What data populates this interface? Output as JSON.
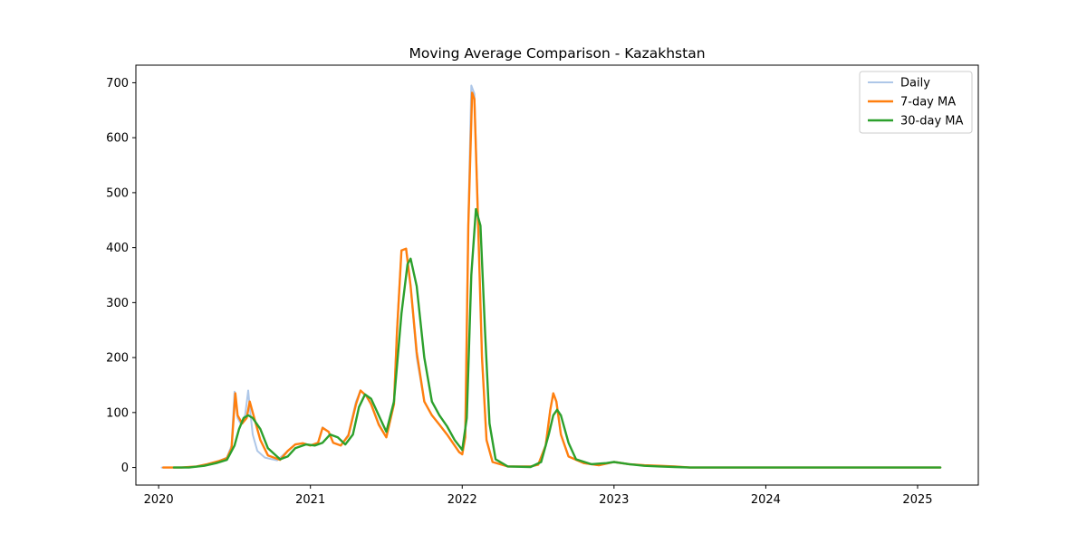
{
  "chart_data": {
    "type": "line",
    "title": "Moving Average Comparison - Kazakhstan",
    "xlabel": "",
    "ylabel": "",
    "xlim": [
      2019.85,
      2025.4
    ],
    "ylim": [
      -32,
      732
    ],
    "x_ticks": [
      2020,
      2021,
      2022,
      2023,
      2024,
      2025
    ],
    "x_tick_labels": [
      "2020",
      "2021",
      "2022",
      "2023",
      "2024",
      "2025"
    ],
    "y_ticks": [
      0,
      100,
      200,
      300,
      400,
      500,
      600,
      700
    ],
    "y_tick_labels": [
      "0",
      "100",
      "200",
      "300",
      "400",
      "500",
      "600",
      "700"
    ],
    "grid": false,
    "legend": {
      "position": "top-right",
      "entries": [
        "Daily",
        "7-day MA",
        "30-day MA"
      ]
    },
    "series": [
      {
        "name": "Daily",
        "color": "#aec7e8",
        "x": [
          2020.02,
          2020.15,
          2020.25,
          2020.32,
          2020.4,
          2020.45,
          2020.48,
          2020.5,
          2020.52,
          2020.54,
          2020.57,
          2020.59,
          2020.6,
          2020.62,
          2020.65,
          2020.7,
          2020.78,
          2020.85,
          2020.9,
          2020.95,
          2021.0,
          2021.05,
          2021.08,
          2021.12,
          2021.15,
          2021.2,
          2021.25,
          2021.3,
          2021.33,
          2021.37,
          2021.4,
          2021.45,
          2021.5,
          2021.55,
          2021.57,
          2021.6,
          2021.63,
          2021.66,
          2021.7,
          2021.75,
          2021.8,
          2021.85,
          2021.9,
          2021.95,
          2021.98,
          2022.0,
          2022.02,
          2022.04,
          2022.06,
          2022.08,
          2022.1,
          2022.13,
          2022.16,
          2022.2,
          2022.3,
          2022.45,
          2022.5,
          2022.55,
          2022.58,
          2022.6,
          2022.62,
          2022.65,
          2022.7,
          2022.8,
          2022.9,
          2023.0,
          2023.1,
          2023.2,
          2023.3,
          2023.4,
          2023.5,
          2024.0,
          2024.5,
          2025.0,
          2025.15
        ],
        "y": [
          0,
          0,
          2,
          6,
          12,
          18,
          40,
          138,
          90,
          80,
          95,
          140,
          110,
          60,
          30,
          18,
          13,
          30,
          42,
          44,
          40,
          45,
          73,
          65,
          45,
          40,
          60,
          120,
          140,
          128,
          115,
          80,
          55,
          120,
          250,
          395,
          398,
          330,
          200,
          120,
          95,
          78,
          60,
          40,
          28,
          25,
          60,
          450,
          695,
          680,
          500,
          200,
          50,
          10,
          2,
          2,
          5,
          40,
          105,
          135,
          120,
          60,
          20,
          8,
          4,
          10,
          6,
          4,
          3,
          2,
          0,
          0,
          0,
          0,
          0
        ]
      },
      {
        "name": "7-day MA",
        "color": "#ff7f0e",
        "x": [
          2020.03,
          2020.15,
          2020.25,
          2020.32,
          2020.4,
          2020.45,
          2020.48,
          2020.505,
          2020.52,
          2020.55,
          2020.58,
          2020.6,
          2020.63,
          2020.67,
          2020.72,
          2020.8,
          2020.85,
          2020.9,
          2020.95,
          2021.0,
          2021.05,
          2021.08,
          2021.12,
          2021.15,
          2021.2,
          2021.25,
          2021.3,
          2021.33,
          2021.37,
          2021.4,
          2021.45,
          2021.5,
          2021.55,
          2021.57,
          2021.6,
          2021.63,
          2021.66,
          2021.7,
          2021.75,
          2021.8,
          2021.85,
          2021.9,
          2021.95,
          2021.98,
          2022.0,
          2022.02,
          2022.04,
          2022.065,
          2022.08,
          2022.1,
          2022.13,
          2022.16,
          2022.2,
          2022.3,
          2022.45,
          2022.5,
          2022.55,
          2022.58,
          2022.6,
          2022.62,
          2022.65,
          2022.7,
          2022.8,
          2022.9,
          2023.0,
          2023.1,
          2023.2,
          2023.3,
          2023.4,
          2023.5,
          2024.0,
          2024.5,
          2025.0,
          2025.15
        ],
        "y": [
          0,
          0,
          2,
          6,
          12,
          17,
          35,
          135,
          95,
          80,
          90,
          120,
          90,
          50,
          22,
          14,
          30,
          42,
          44,
          40,
          45,
          72,
          65,
          45,
          40,
          58,
          115,
          140,
          130,
          115,
          78,
          55,
          115,
          245,
          395,
          398,
          330,
          210,
          120,
          95,
          78,
          60,
          40,
          28,
          24,
          55,
          440,
          682,
          670,
          490,
          200,
          50,
          10,
          2,
          2,
          5,
          40,
          105,
          135,
          120,
          60,
          20,
          8,
          4,
          10,
          6,
          4,
          3,
          2,
          0,
          0,
          0,
          0,
          0
        ]
      },
      {
        "name": "30-day MA",
        "color": "#2ca02c",
        "x": [
          2020.1,
          2020.2,
          2020.3,
          2020.38,
          2020.45,
          2020.5,
          2020.53,
          2020.56,
          2020.59,
          2020.62,
          2020.67,
          2020.72,
          2020.8,
          2020.85,
          2020.9,
          2020.97,
          2021.03,
          2021.08,
          2021.13,
          2021.18,
          2021.23,
          2021.28,
          2021.32,
          2021.36,
          2021.4,
          2021.45,
          2021.5,
          2021.55,
          2021.6,
          2021.64,
          2021.66,
          2021.7,
          2021.75,
          2021.8,
          2021.85,
          2021.9,
          2021.95,
          2022.0,
          2022.03,
          2022.06,
          2022.09,
          2022.12,
          2022.15,
          2022.18,
          2022.22,
          2022.3,
          2022.45,
          2022.52,
          2022.57,
          2022.6,
          2022.625,
          2022.65,
          2022.7,
          2022.75,
          2022.85,
          2022.95,
          2023.0,
          2023.05,
          2023.1,
          2023.2,
          2023.3,
          2023.4,
          2023.5,
          2024.0,
          2024.5,
          2025.0,
          2025.15
        ],
        "y": [
          0,
          0,
          3,
          8,
          14,
          40,
          70,
          90,
          95,
          90,
          70,
          35,
          15,
          20,
          35,
          42,
          40,
          45,
          60,
          55,
          42,
          60,
          110,
          133,
          125,
          95,
          65,
          120,
          280,
          370,
          380,
          330,
          200,
          120,
          95,
          75,
          50,
          32,
          90,
          350,
          470,
          440,
          250,
          80,
          15,
          2,
          1,
          10,
          60,
          95,
          105,
          95,
          45,
          15,
          6,
          8,
          10,
          8,
          6,
          3,
          2,
          1,
          0,
          0,
          0,
          0,
          0
        ]
      }
    ]
  }
}
